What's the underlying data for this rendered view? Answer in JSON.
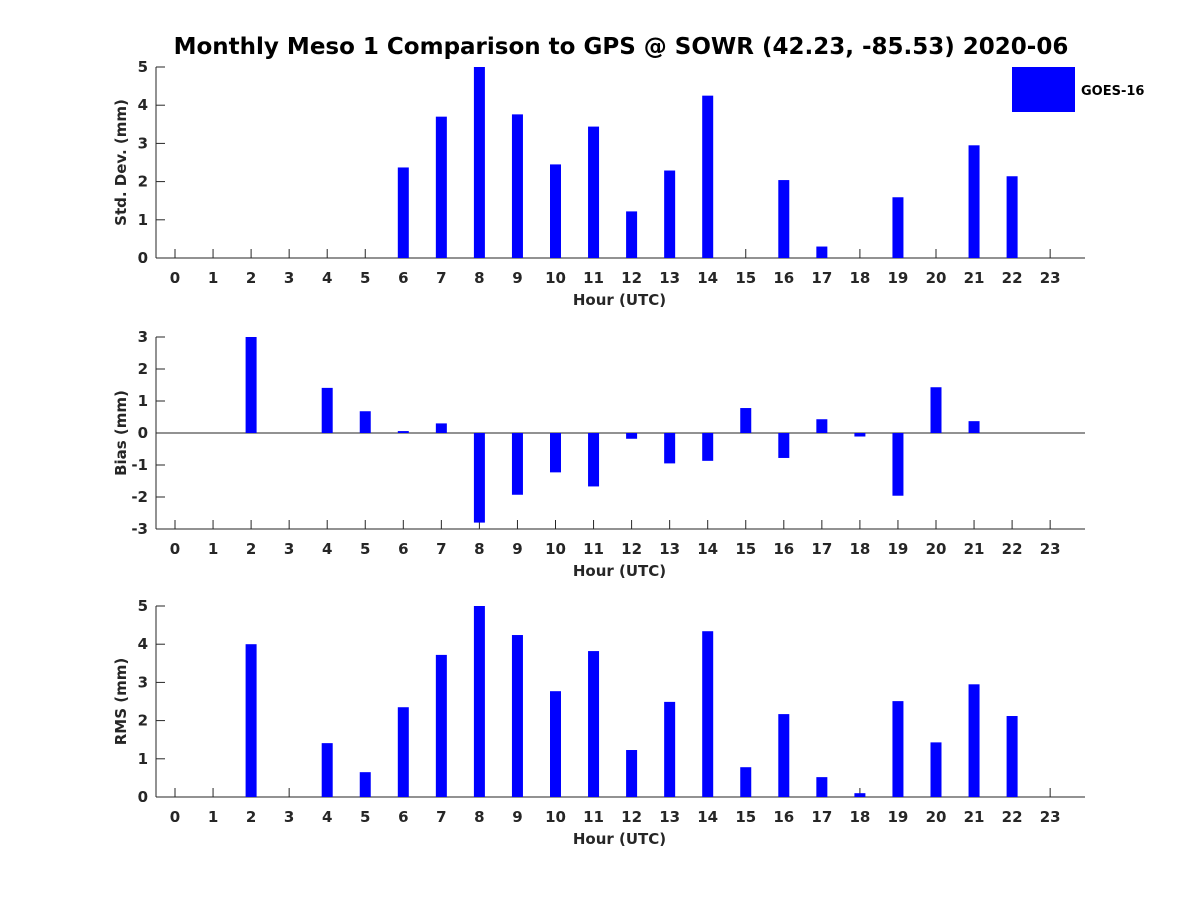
{
  "title": "Monthly Meso 1 Comparison to GPS @ SOWR (42.23, -85.53) 2020-06",
  "colors": {
    "bar": "#0000ff",
    "axis": "#262626"
  },
  "chart_data": [
    {
      "type": "bar",
      "name": "std-dev",
      "ylabel": "Std. Dev. (mm)",
      "xlabel": "Hour (UTC)",
      "ylim": [
        0,
        5
      ],
      "yticks": [
        0,
        1,
        2,
        3,
        4,
        5
      ],
      "categories": [
        "0",
        "1",
        "2",
        "3",
        "4",
        "5",
        "6",
        "7",
        "8",
        "9",
        "10",
        "11",
        "12",
        "13",
        "14",
        "15",
        "16",
        "17",
        "18",
        "19",
        "20",
        "21",
        "22",
        "23"
      ],
      "legend": {
        "label": "GOES-16",
        "position": "top-right"
      },
      "series": [
        {
          "name": "GOES-16",
          "values": [
            null,
            null,
            null,
            null,
            null,
            null,
            2.37,
            3.7,
            5.0,
            3.76,
            2.45,
            3.44,
            1.22,
            2.29,
            4.25,
            null,
            2.04,
            0.3,
            null,
            1.59,
            null,
            2.95,
            2.14,
            null
          ]
        }
      ]
    },
    {
      "type": "bar",
      "name": "bias",
      "ylabel": "Bias (mm)",
      "xlabel": "Hour (UTC)",
      "ylim": [
        -3,
        3
      ],
      "yticks": [
        -3,
        -2,
        -1,
        0,
        1,
        2,
        3
      ],
      "categories": [
        "0",
        "1",
        "2",
        "3",
        "4",
        "5",
        "6",
        "7",
        "8",
        "9",
        "10",
        "11",
        "12",
        "13",
        "14",
        "15",
        "16",
        "17",
        "18",
        "19",
        "20",
        "21",
        "22",
        "23"
      ],
      "series": [
        {
          "name": "GOES-16",
          "values": [
            null,
            null,
            3.0,
            null,
            1.41,
            0.68,
            0.06,
            0.3,
            -2.8,
            -1.93,
            -1.23,
            -1.67,
            -0.18,
            -0.95,
            -0.87,
            0.78,
            -0.78,
            0.43,
            -0.11,
            -1.96,
            1.43,
            0.37,
            null,
            null
          ]
        }
      ]
    },
    {
      "type": "bar",
      "name": "rms",
      "ylabel": "RMS (mm)",
      "xlabel": "Hour (UTC)",
      "ylim": [
        0,
        5
      ],
      "yticks": [
        0,
        1,
        2,
        3,
        4,
        5
      ],
      "categories": [
        "0",
        "1",
        "2",
        "3",
        "4",
        "5",
        "6",
        "7",
        "8",
        "9",
        "10",
        "11",
        "12",
        "13",
        "14",
        "15",
        "16",
        "17",
        "18",
        "19",
        "20",
        "21",
        "22",
        "23"
      ],
      "series": [
        {
          "name": "GOES-16",
          "values": [
            null,
            null,
            4.0,
            null,
            1.41,
            0.65,
            2.35,
            3.72,
            5.0,
            4.24,
            2.77,
            3.82,
            1.23,
            2.49,
            4.34,
            0.78,
            2.17,
            0.52,
            0.1,
            2.51,
            1.43,
            2.95,
            2.12,
            null
          ]
        }
      ]
    }
  ]
}
